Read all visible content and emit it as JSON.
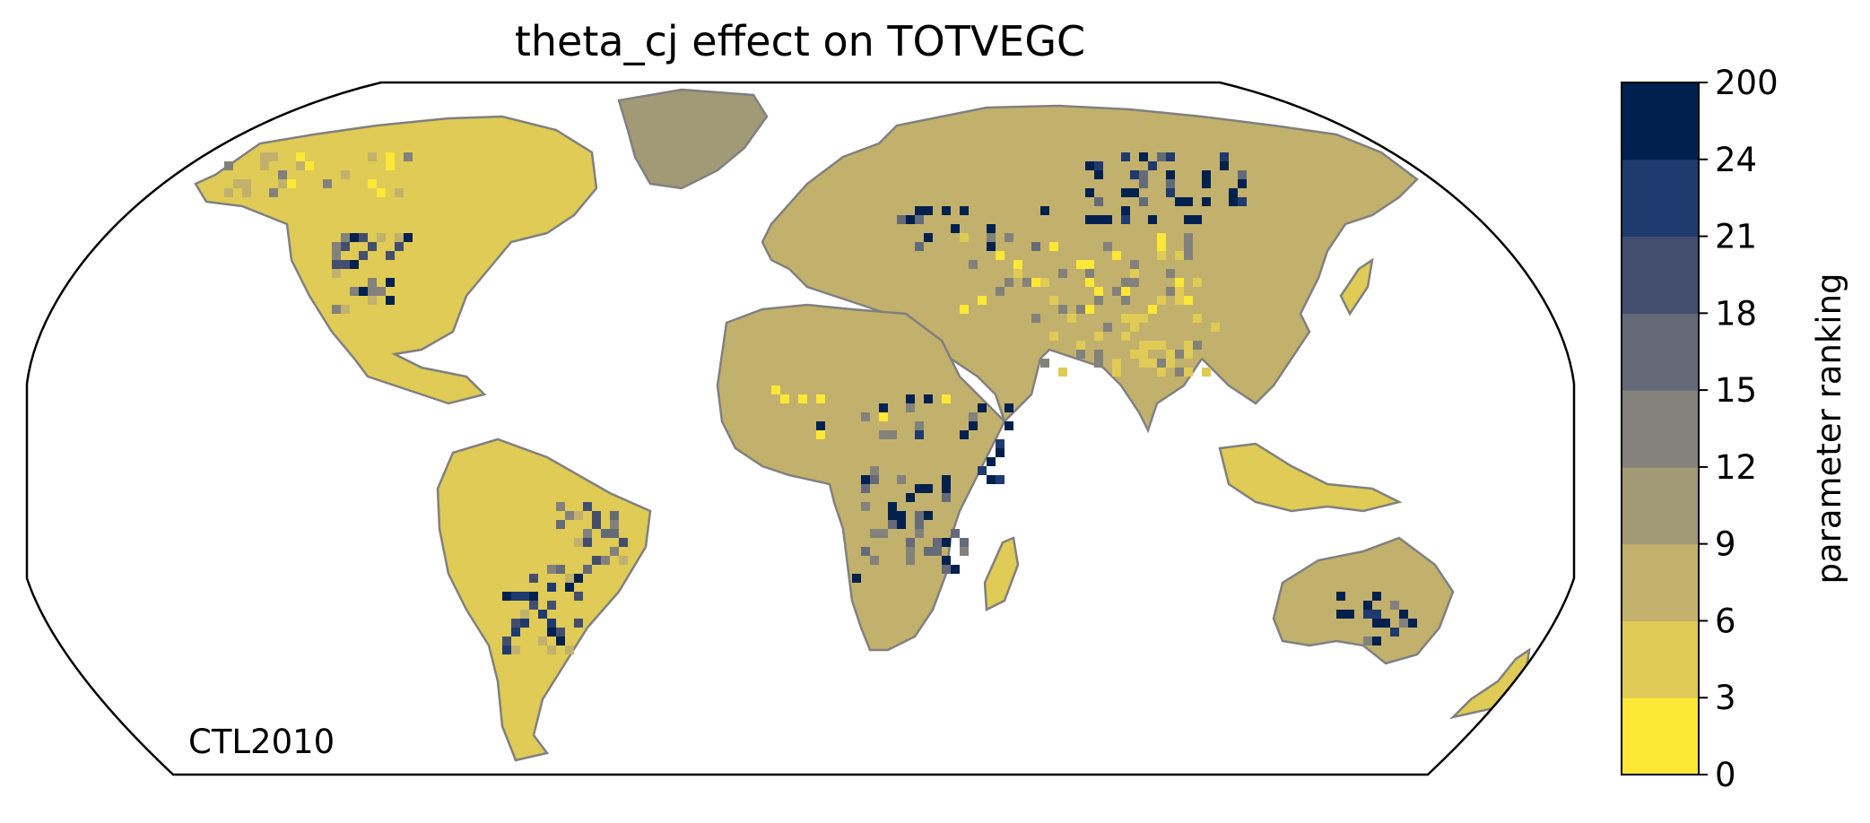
{
  "title": "theta_cj effect on TOTVEGC",
  "corner_label": "CTL2010",
  "colorbar": {
    "label": "parameter ranking",
    "ticks": [
      "0",
      "3",
      "6",
      "9",
      "12",
      "15",
      "18",
      "21",
      "24",
      "200"
    ],
    "colors": [
      "#fde737",
      "#dfcb55",
      "#c2b16c",
      "#a29a77",
      "#82817b",
      "#646a78",
      "#434e6e",
      "#1f3a6e",
      "#00214e"
    ]
  },
  "map": {
    "projection": "Robinson",
    "ocean_color": "#ffffff",
    "coastline_color": "#808080",
    "regions": [
      {
        "name": "north-america",
        "dominant_class": 1
      },
      {
        "name": "south-america",
        "dominant_class": 1
      },
      {
        "name": "europe",
        "dominant_class": 2
      },
      {
        "name": "africa",
        "dominant_class": 2
      },
      {
        "name": "asia",
        "dominant_class": 2
      },
      {
        "name": "australia",
        "dominant_class": 2
      },
      {
        "name": "greenland",
        "dominant_class": 3
      }
    ]
  }
}
